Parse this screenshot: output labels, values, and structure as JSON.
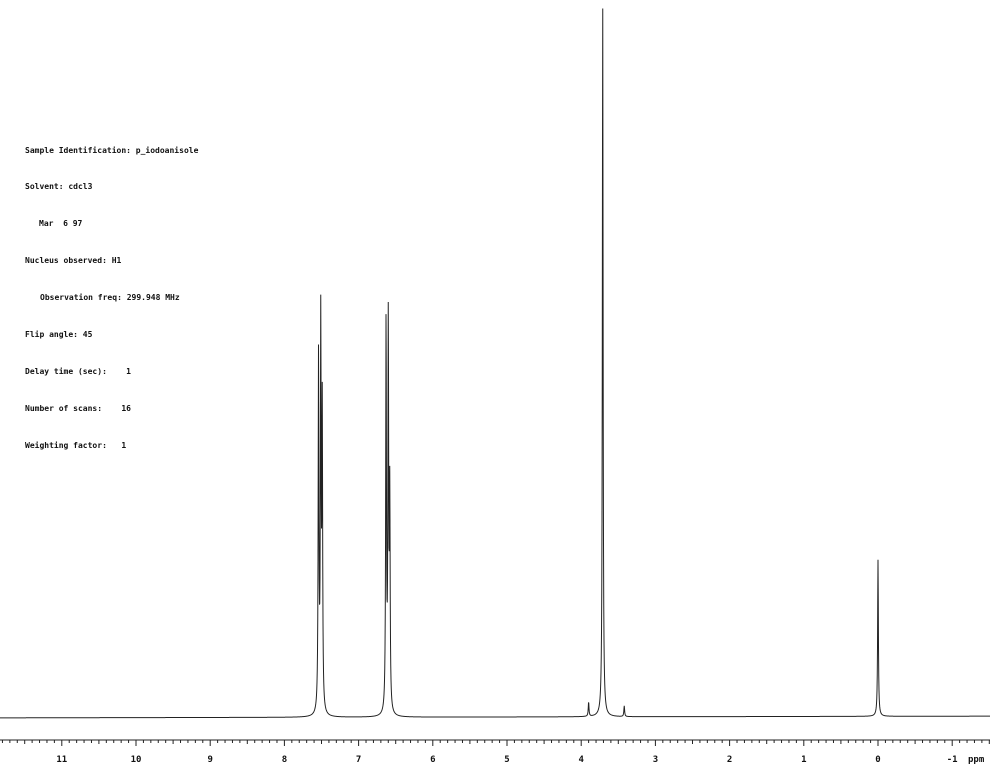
{
  "params": {
    "sample_id": "Sample Identification: p_iodoanisole",
    "solvent": "Solvent: cdcl3",
    "date": "Mar  6 97",
    "nucleus": "Nucleus observed: H1",
    "obs_freq": "Observation freq: 299.948 MHz",
    "flip_angle": "Flip angle: 45",
    "delay": "Delay time (sec):    1",
    "scans": "Number of scans:    16",
    "weighting": "Weighting factor:   1"
  },
  "chart_data": {
    "type": "line",
    "xlabel": "ppm",
    "xlim": [
      12.0,
      -1.5
    ],
    "x_reversed": true,
    "y_units": "relative intensity",
    "ylim": [
      0,
      1.0
    ],
    "major_ticks": [
      11,
      10,
      9,
      8,
      7,
      6,
      5,
      4,
      3,
      2,
      1,
      0,
      -1
    ],
    "tick_labels": [
      "11",
      "10",
      "9",
      "8",
      "7",
      "6",
      "5",
      "4",
      "3",
      "2",
      "1",
      "0",
      "-1"
    ],
    "baseline_level": 0.003,
    "peaks": [
      {
        "ppm": 7.54,
        "height": 0.5
      },
      {
        "ppm": 7.51,
        "height": 0.54
      },
      {
        "ppm": 7.49,
        "height": 0.42
      },
      {
        "ppm": 6.63,
        "height": 0.55
      },
      {
        "ppm": 6.6,
        "height": 0.54
      },
      {
        "ppm": 6.58,
        "height": 0.3
      },
      {
        "ppm": 3.9,
        "height": 0.02
      },
      {
        "ppm": 3.71,
        "height": 1.0
      },
      {
        "ppm": 3.42,
        "height": 0.015
      },
      {
        "ppm": 0.0,
        "height": 0.22
      }
    ]
  }
}
